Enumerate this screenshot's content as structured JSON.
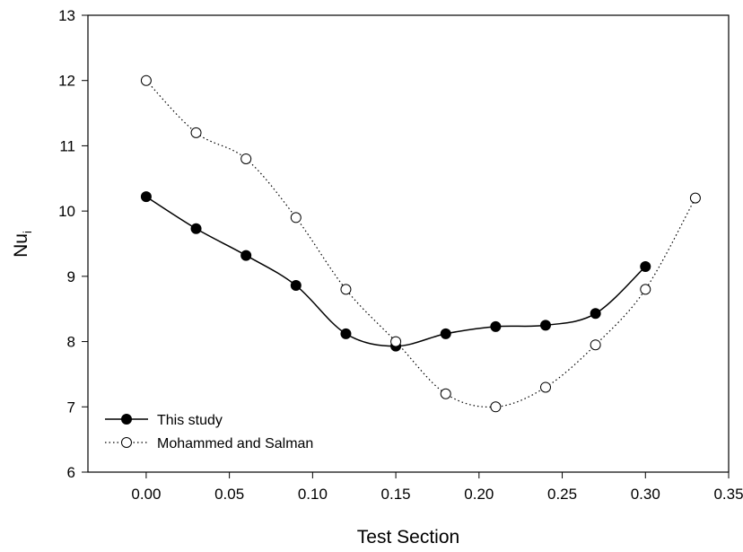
{
  "chart_data": {
    "type": "line",
    "xlabel": "Test Section",
    "ylabel": "Nu",
    "ylabel_subscript": "i",
    "xlim": [
      -0.035,
      0.35
    ],
    "ylim": [
      6,
      13
    ],
    "xticks": [
      "0.00",
      "0.05",
      "0.10",
      "0.15",
      "0.20",
      "0.25",
      "0.30",
      "0.35"
    ],
    "xtick_values": [
      0.0,
      0.05,
      0.1,
      0.15,
      0.2,
      0.25,
      0.3,
      0.35
    ],
    "yticks": [
      "6",
      "7",
      "8",
      "9",
      "10",
      "11",
      "12",
      "13"
    ],
    "ytick_values": [
      6,
      7,
      8,
      9,
      10,
      11,
      12,
      13
    ],
    "grid": false,
    "legend_position": "bottom-left",
    "series": [
      {
        "name": "This study",
        "marker": "filled-circle",
        "line_style": "solid",
        "x": [
          0.0,
          0.03,
          0.06,
          0.09,
          0.12,
          0.15,
          0.18,
          0.21,
          0.24,
          0.27,
          0.3
        ],
        "y": [
          10.22,
          9.73,
          9.32,
          8.86,
          8.12,
          7.93,
          8.12,
          8.23,
          8.25,
          8.43,
          9.15
        ]
      },
      {
        "name": "Mohammed and Salman",
        "marker": "open-circle",
        "line_style": "dotted",
        "x": [
          0.0,
          0.03,
          0.06,
          0.09,
          0.12,
          0.15,
          0.18,
          0.21,
          0.24,
          0.27,
          0.3,
          0.33
        ],
        "y": [
          12.0,
          11.2,
          10.8,
          9.9,
          8.8,
          8.0,
          7.2,
          7.0,
          7.3,
          7.95,
          8.8,
          10.2
        ]
      }
    ]
  }
}
